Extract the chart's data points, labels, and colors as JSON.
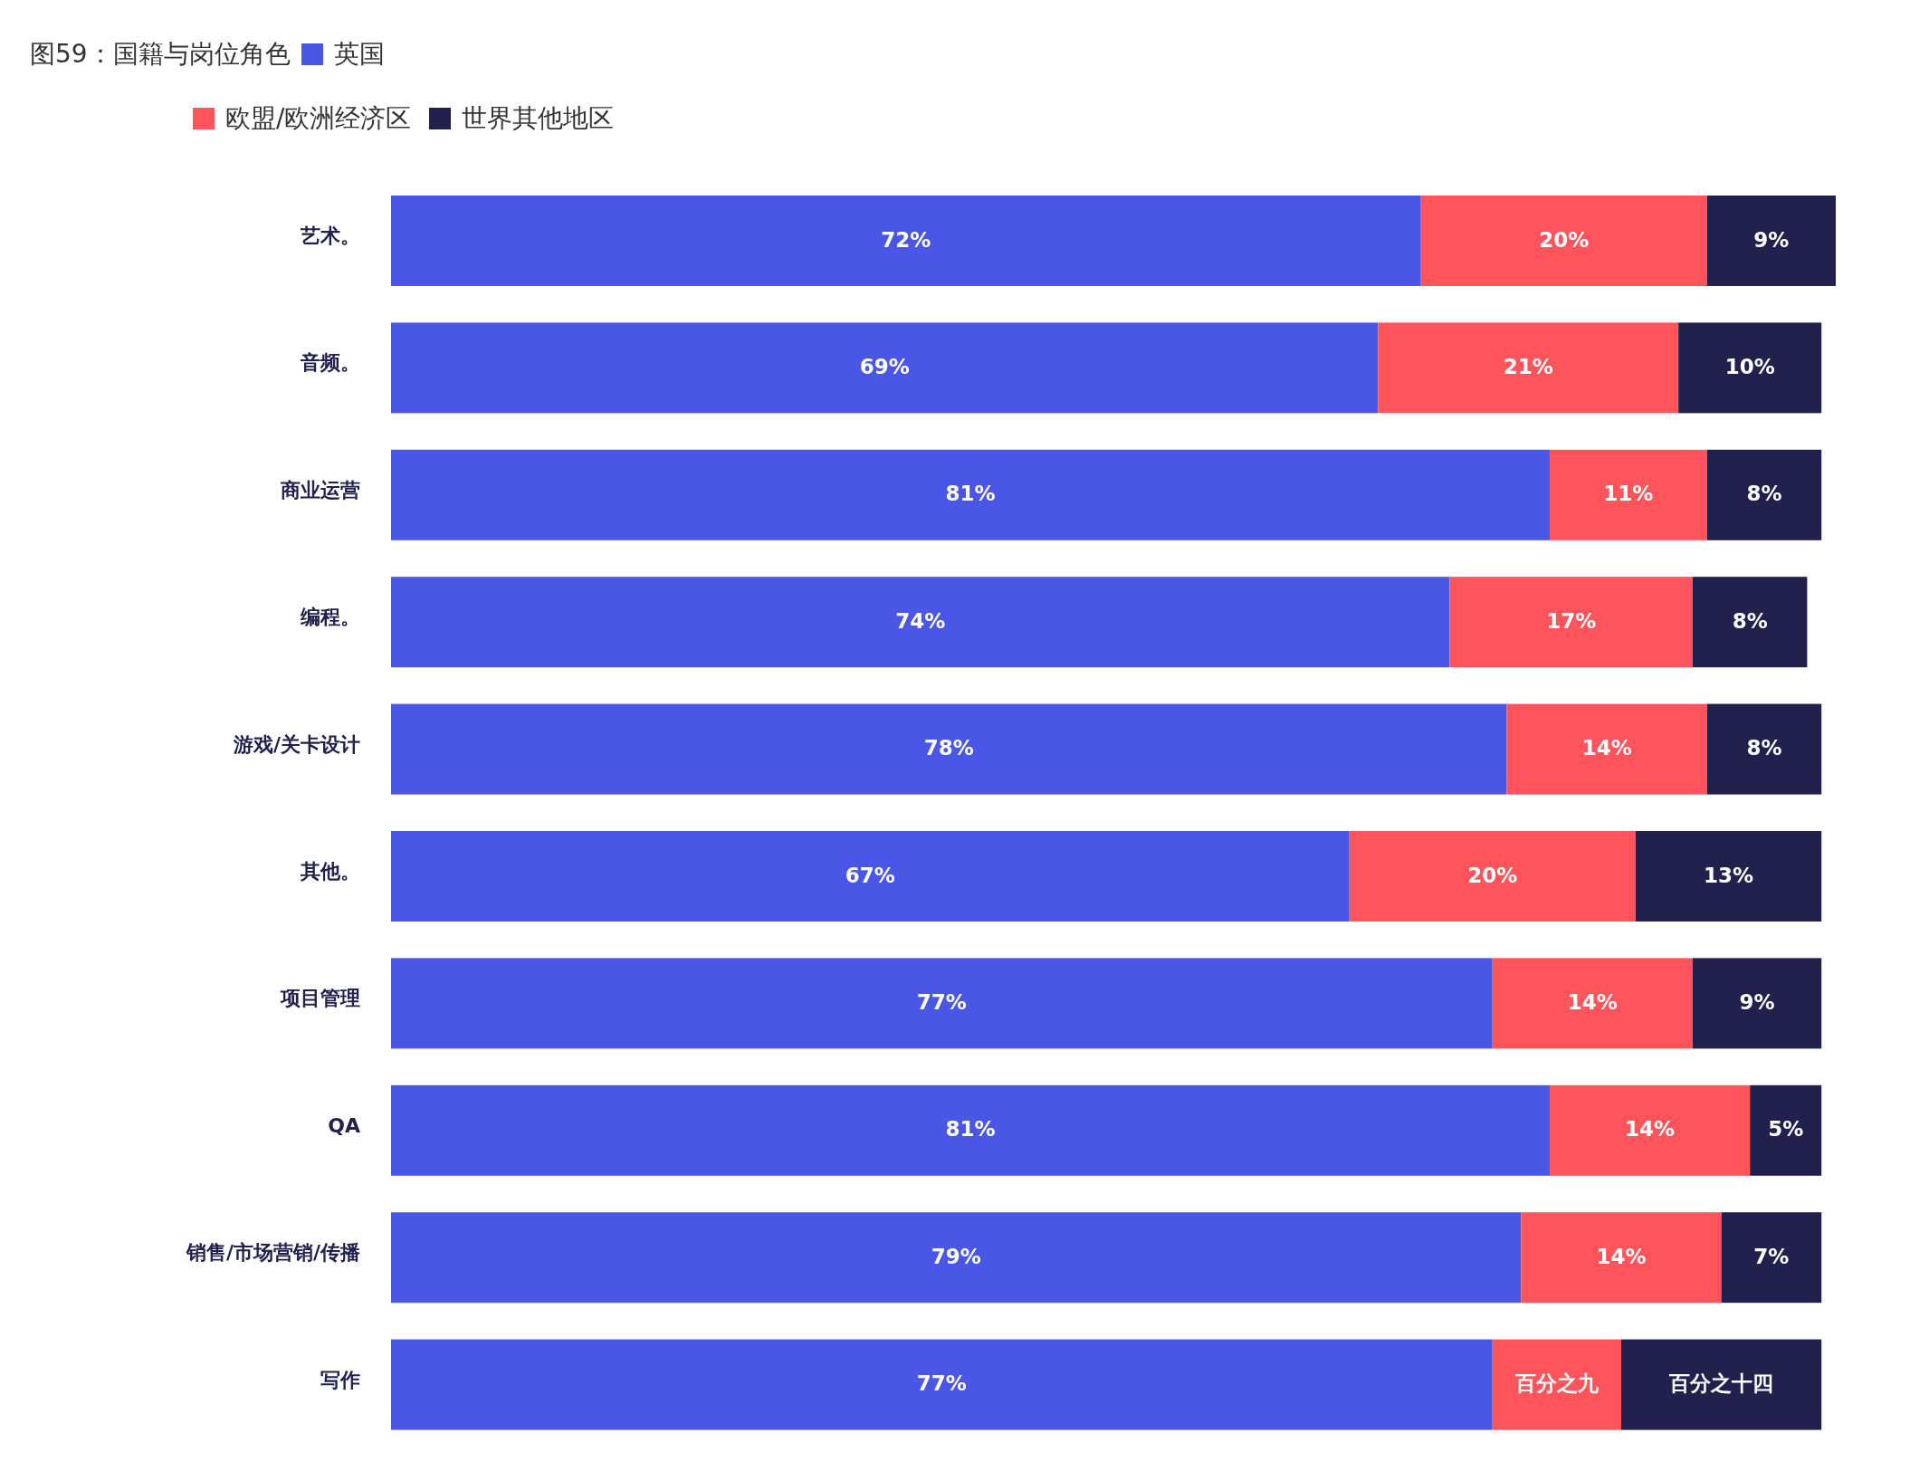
{
  "chart_data": {
    "type": "bar",
    "orientation": "horizontal",
    "stacked": true,
    "title": "图59：国籍与岗位角色",
    "categories": [
      "艺术。",
      "音频。",
      "商业运营",
      "编程。",
      "游戏/关卡设计",
      "其他。",
      "项目管理",
      "QA",
      "销售/市场营销/传播",
      "写作"
    ],
    "series": [
      {
        "name": "英国",
        "color": "#4a57e6",
        "values": [
          72,
          69,
          81,
          74,
          78,
          67,
          77,
          81,
          79,
          77
        ],
        "value_labels": [
          "72%",
          "69%",
          "81%",
          "74%",
          "78%",
          "67%",
          "77%",
          "81%",
          "79%",
          "77%"
        ]
      },
      {
        "name": "欧盟/欧洲经济区",
        "color": "#ff545c",
        "values": [
          20,
          21,
          11,
          17,
          14,
          20,
          14,
          14,
          14,
          9
        ],
        "value_labels": [
          "20%",
          "21%",
          "11%",
          "17%",
          "14%",
          "20%",
          "14%",
          "14%",
          "14%",
          "百分之九"
        ]
      },
      {
        "name": "世界其他地区",
        "color": "#22204c",
        "values": [
          9,
          10,
          8,
          8,
          8,
          13,
          9,
          5,
          7,
          14
        ],
        "value_labels": [
          "9%",
          "10%",
          "8%",
          "8%",
          "8%",
          "13%",
          "9%",
          "5%",
          "7%",
          "百分之十四"
        ]
      }
    ],
    "xlim": [
      0,
      101
    ],
    "legend": "top left",
    "tick_labels": "y"
  }
}
